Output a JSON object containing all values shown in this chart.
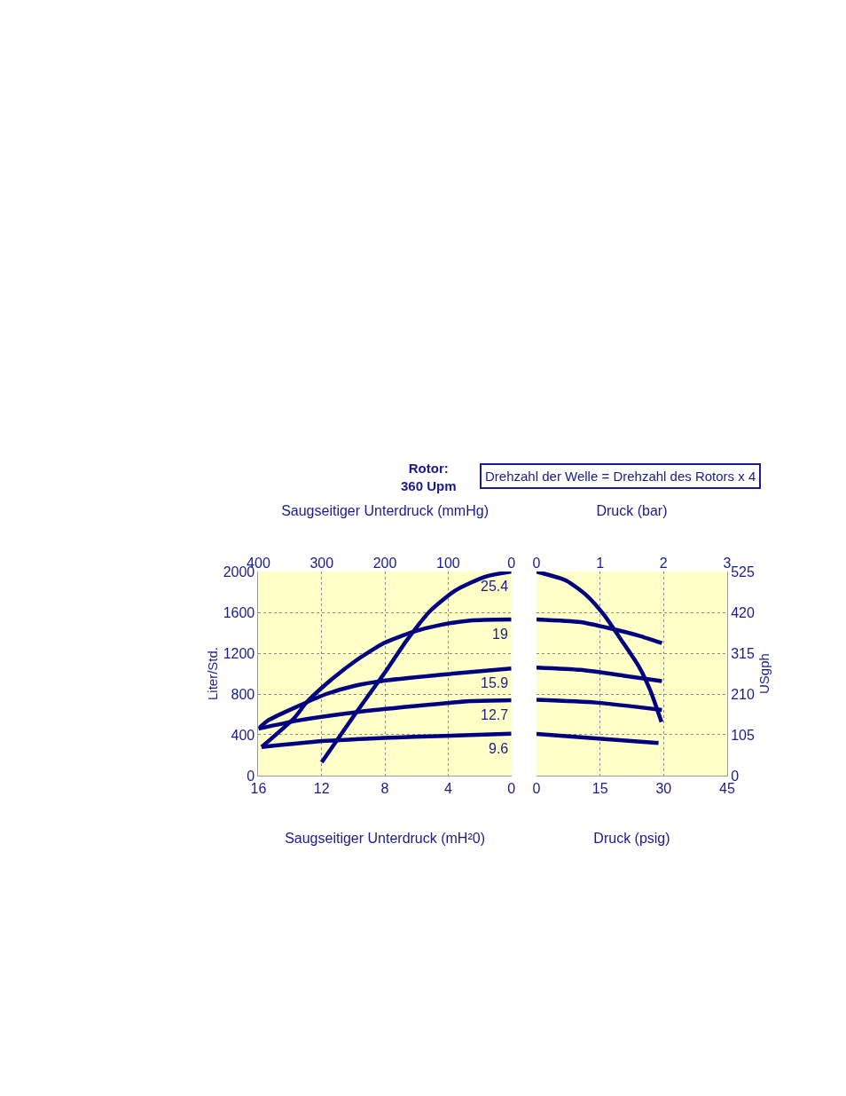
{
  "chart_data": [
    {
      "type": "line",
      "xlabel": "Saugseitiger Unterdruck (mH²0)",
      "x2label": "Saugseitiger Unterdruck (mmHg)",
      "ylabel": "Liter/Std.",
      "annotations": [
        "Rotor:\n360 Upm",
        "Drehzahl der Welle = Drehzahl des Rotors x 4"
      ],
      "xlim": [
        16,
        0
      ],
      "xticks": [
        16,
        12,
        8,
        4,
        0
      ],
      "x2lim": [
        400,
        0
      ],
      "x2ticks": [
        400,
        300,
        200,
        100,
        0
      ],
      "ylim": [
        0,
        2000
      ],
      "yticks": [
        0,
        400,
        800,
        1200,
        1600,
        2000
      ],
      "grid": true,
      "line_style": "solid",
      "series": [
        {
          "name": "25.4",
          "color": "#000080",
          "x": [
            12,
            9.9,
            8.05,
            6.6,
            5.1,
            3.5,
            1.65,
            0
          ],
          "values": [
            130,
            600,
            1000,
            1330,
            1620,
            1820,
            1950,
            2000
          ]
        },
        {
          "name": "19",
          "color": "#000080",
          "x": [
            15.8,
            13.7,
            13,
            11.7,
            9.9,
            8.05,
            6.2,
            4.4,
            2.6,
            0
          ],
          "values": [
            280,
            570,
            710,
            900,
            1120,
            1300,
            1410,
            1480,
            1520,
            1530
          ]
        },
        {
          "name": "15.9",
          "color": "#000080",
          "x": [
            16,
            15.4,
            13.5,
            11.7,
            9.9,
            8.05,
            4.4,
            0
          ],
          "values": [
            460,
            540,
            680,
            800,
            880,
            930,
            990,
            1050
          ]
        },
        {
          "name": "12.7",
          "color": "#000080",
          "x": [
            16,
            13.5,
            9.9,
            6.2,
            2.6,
            0
          ],
          "values": [
            460,
            540,
            620,
            680,
            730,
            740
          ]
        },
        {
          "name": "9.6",
          "color": "#000080",
          "x": [
            15.8,
            11.7,
            6.2,
            0
          ],
          "values": [
            280,
            340,
            380,
            410
          ]
        }
      ]
    },
    {
      "type": "line",
      "xlabel": "Druck (psig)",
      "x2label": "Druck (bar)",
      "y2label": "USgph",
      "xlim": [
        0,
        45
      ],
      "xticks": [
        0,
        15,
        30,
        45
      ],
      "x2lim": [
        0,
        3
      ],
      "x2ticks": [
        0,
        1,
        2,
        3
      ],
      "y2lim": [
        0,
        525
      ],
      "y2ticks": [
        0,
        105,
        210,
        315,
        420,
        525
      ],
      "grid": true,
      "line_style": "solid",
      "series": [
        {
          "color": "#000080",
          "axis": "y2",
          "x": [
            0,
            7,
            11.8,
            15.9,
            20,
            24.2,
            26.9,
            29.5
          ],
          "values": [
            525,
            502,
            464,
            414,
            349,
            280,
            218,
            138
          ]
        },
        {
          "color": "#000080",
          "axis": "y2",
          "x": [
            0,
            10.4,
            17.3,
            24.2,
            29.6
          ],
          "values": [
            402,
            395,
            379,
            360,
            341
          ]
        },
        {
          "color": "#000080",
          "axis": "y2",
          "x": [
            0,
            10.4,
            20.7,
            29.6
          ],
          "values": [
            278,
            272,
            257,
            243
          ]
        },
        {
          "color": "#000080",
          "axis": "y2",
          "x": [
            0,
            13.9,
            24.2,
            29.6
          ],
          "values": [
            195,
            188,
            176,
            169
          ]
        },
        {
          "color": "#000080",
          "axis": "y2",
          "x": [
            0,
            13.9,
            28.8
          ],
          "values": [
            107,
            96,
            84
          ]
        }
      ]
    }
  ]
}
